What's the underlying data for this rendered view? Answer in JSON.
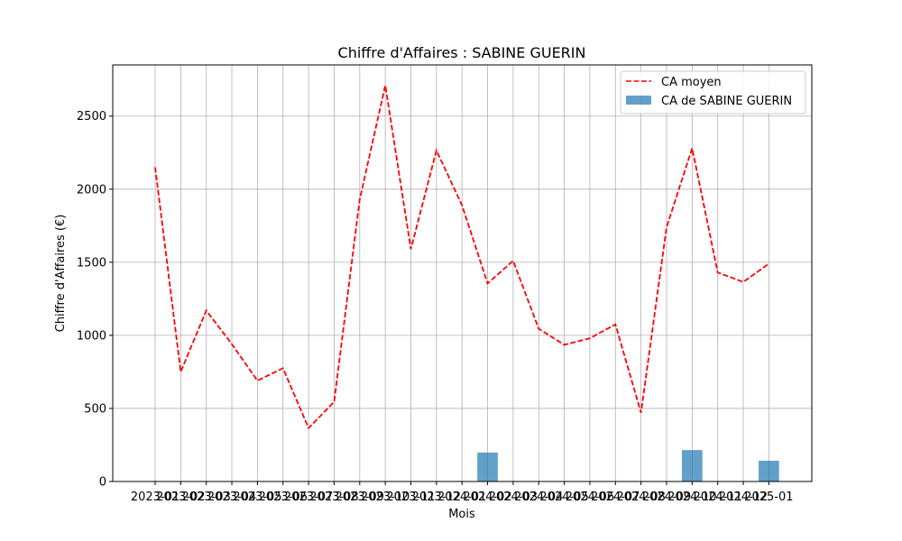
{
  "chart_data": {
    "type": "bar+line",
    "title": "Chiffre d'Affaires : SABINE GUERIN",
    "xlabel": "Mois",
    "ylabel": "Chiffre d'Affaires (€)",
    "ylim": [
      0,
      2850
    ],
    "yticks": [
      0,
      500,
      1000,
      1500,
      2000,
      2500
    ],
    "grid": true,
    "legend_position": "top-right",
    "categories": [
      "2023-01",
      "2023-02",
      "2023-03",
      "2023-04",
      "2023-05",
      "2023-06",
      "2023-07",
      "2023-08",
      "2023-09",
      "2023-10",
      "2023-11",
      "2023-12",
      "2024-01",
      "2024-02",
      "2024-03",
      "2024-04",
      "2024-05",
      "2024-06",
      "2024-07",
      "2024-08",
      "2024-09",
      "2024-10",
      "2024-11",
      "2024-12",
      "2025-01"
    ],
    "series": [
      {
        "name": "CA moyen",
        "kind": "line",
        "style": "dashed",
        "color": "#ff0000",
        "values": [
          2150,
          750,
          1170,
          940,
          690,
          775,
          365,
          545,
          1930,
          2710,
          1590,
          2265,
          1890,
          1355,
          1510,
          1045,
          935,
          980,
          1075,
          470,
          1740,
          2280,
          1430,
          1365,
          1490
        ]
      },
      {
        "name": "CA de SABINE GUERIN",
        "kind": "bar",
        "color": "#1f77b4",
        "opacity": 0.7,
        "values": [
          null,
          null,
          null,
          null,
          null,
          null,
          null,
          null,
          null,
          null,
          null,
          null,
          null,
          198,
          null,
          null,
          null,
          null,
          null,
          null,
          null,
          215,
          null,
          null,
          142
        ]
      }
    ]
  }
}
